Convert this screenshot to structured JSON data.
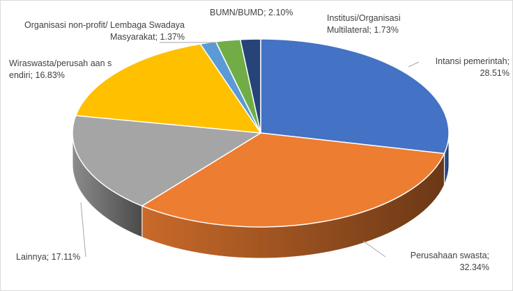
{
  "chart_data": {
    "type": "pie3d",
    "categories": [
      "Intansi pemerintah",
      "Perusahaan swasta",
      "Lainnya",
      "Wiraswasta/perusahaan sendiri",
      "Organisasi non-profit/ Lembaga Swadaya Masyarakat",
      "BUMN/BUMD",
      "Institusi/Organisasi Multilateral"
    ],
    "values": [
      28.51,
      32.34,
      17.11,
      16.83,
      1.37,
      2.1,
      1.73
    ],
    "value_labels": [
      "Intansi pemerintah; 28.51%",
      "Perusahaan swasta; 32.34%",
      "Lainnya; 17.11%",
      "Wiraswasta/perusah aan sendiri; 16.83%",
      "Organisasi non-profit/ Lembaga Swadaya Masyarakat; 1.37%",
      "BUMN/BUMD; 2.10%",
      "Institusi/Organisasi Multilateral; 1.73%"
    ],
    "colors": [
      "#4472c4",
      "#ed7d31",
      "#a5a5a5",
      "#ffc000",
      "#5b9bd5",
      "#70ad47",
      "#264478"
    ]
  }
}
